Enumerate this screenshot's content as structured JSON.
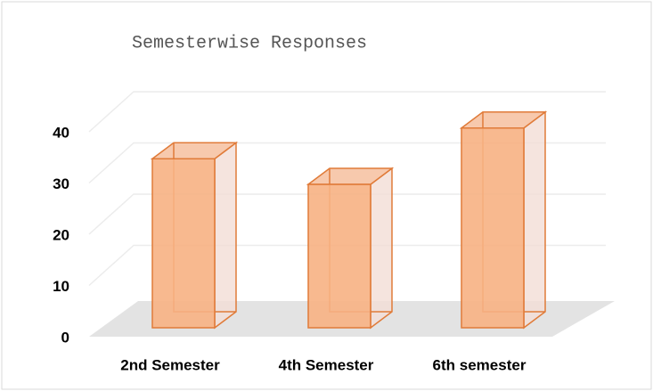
{
  "chart_data": {
    "type": "bar",
    "title": "Semesterwise Responses",
    "categories": [
      "2nd Semester",
      "4th Semester",
      "6th semester"
    ],
    "values": [
      33,
      28,
      39
    ],
    "color": "#f7b183",
    "ylim": [
      0,
      40
    ],
    "yticks": [
      0,
      10,
      20,
      30,
      40
    ],
    "grid": true
  }
}
